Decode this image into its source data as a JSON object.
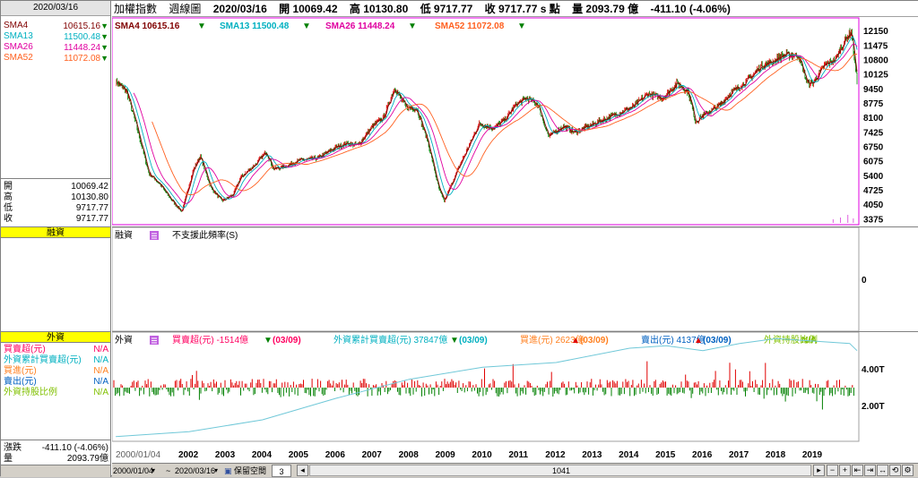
{
  "left_panel": {
    "date": "2020/03/16",
    "sma": [
      {
        "label": "SMA4",
        "value": "10615.16",
        "color": "#800000"
      },
      {
        "label": "SMA13",
        "value": "11500.48",
        "color": "#00b0c0"
      },
      {
        "label": "SMA26",
        "value": "11448.24",
        "color": "#e000a0"
      },
      {
        "label": "SMA52",
        "value": "11072.08",
        "color": "#ff6020"
      }
    ],
    "ohlc": [
      {
        "label": "開",
        "value": "10069.42"
      },
      {
        "label": "高",
        "value": "10130.80"
      },
      {
        "label": "低",
        "value": "9717.77"
      },
      {
        "label": "收",
        "value": "9717.77"
      }
    ],
    "margin_header": "融資",
    "foreign_header": "外資",
    "foreign_rows": [
      {
        "label": "買賣超(元)",
        "value": "N/A",
        "color": "#ff0060"
      },
      {
        "label": "外資累計買賣超(元)",
        "value": "N/A",
        "color": "#00b0c0"
      },
      {
        "label": "買進(元)",
        "value": "N/A",
        "color": "#ff8020"
      },
      {
        "label": "賣出(元)",
        "value": "N/A",
        "color": "#0060c0"
      },
      {
        "label": "外資持股比例",
        "value": "N/A",
        "color": "#80c000"
      }
    ],
    "change_label": "漲跌",
    "change_value": "-411.10 (-4.06%)",
    "volume_label": "量",
    "volume_value": "2093.79億"
  },
  "topbar": {
    "name": "加權指數",
    "period": "週線圖",
    "date": "2020/03/16",
    "open": "開 10069.42",
    "high": "高 10130.80",
    "low": "低 9717.77",
    "close": "收 9717.77 s 點",
    "volume": "量 2093.79 億",
    "change": "-411.10 (-4.06%)"
  },
  "price_legend": [
    {
      "text": "SMA4 10615.16",
      "color": "#800000"
    },
    {
      "text": "SMA13 11500.48",
      "color": "#00b0c0"
    },
    {
      "text": "SMA26 11448.24",
      "color": "#e000a0"
    },
    {
      "text": "SMA52 11072.08",
      "color": "#ff6020"
    }
  ],
  "margin_panel": {
    "title": "融資",
    "message": "不支援此頻率(S)",
    "axis_label": "0"
  },
  "foreign_panel": {
    "title": "外資",
    "legend": [
      {
        "text": "買賣超(元) -1514億",
        "date": "(03/09)",
        "arrow": "down",
        "color": "#ff0060"
      },
      {
        "text": "外資累計買賣超(元) 37847億",
        "date": "(03/09)",
        "arrow": "down",
        "color": "#00b0c0"
      },
      {
        "text": "買進(元) 2623億",
        "date": "(03/09)",
        "arrow": "up",
        "color": "#ff8020"
      },
      {
        "text": "賣出(元) 4137億",
        "date": "(03/09)",
        "arrow": "up",
        "color": "#0060c0"
      },
      {
        "text": "外資持股比例",
        "date": "N/A",
        "arrow": "",
        "color": "#80c000"
      }
    ],
    "axis_labels": [
      "4.00T",
      "2.00T"
    ]
  },
  "x_axis": [
    "2000/01/04",
    "2002",
    "2003",
    "2004",
    "2005",
    "2006",
    "2007",
    "2008",
    "2009",
    "2010",
    "2011",
    "2012",
    "2013",
    "2014",
    "2015",
    "2016",
    "2017",
    "2018",
    "2019"
  ],
  "bottombar": {
    "start_date": "2000/01/04",
    "end_date": "2020/03/16",
    "keep_label": "保留空間",
    "keep_value": "3",
    "count": "1041"
  },
  "chart_data": [
    {
      "type": "line",
      "title": "加權指數 週線圖",
      "y_ticks": [
        12150,
        11475,
        10800,
        10125,
        9450,
        8775,
        8100,
        7425,
        6750,
        6075,
        5400,
        4725,
        4050,
        3375
      ],
      "ylim": [
        3100,
        12700
      ],
      "x": [
        2000.0,
        2000.3,
        2000.6,
        2000.9,
        2001.2,
        2001.5,
        2001.8,
        2002.1,
        2002.3,
        2002.6,
        2002.9,
        2003.2,
        2003.4,
        2003.8,
        2004.1,
        2004.3,
        2004.6,
        2005.0,
        2005.5,
        2006.0,
        2006.3,
        2006.6,
        2007.0,
        2007.3,
        2007.6,
        2007.9,
        2008.2,
        2008.5,
        2008.8,
        2008.95,
        2009.3,
        2009.6,
        2009.9,
        2010.3,
        2010.6,
        2010.9,
        2011.2,
        2011.5,
        2011.8,
        2012.2,
        2012.5,
        2012.9,
        2013.3,
        2013.7,
        2014.1,
        2014.5,
        2014.9,
        2015.3,
        2015.6,
        2015.8,
        2016.0,
        2016.4,
        2016.8,
        2017.2,
        2017.6,
        2017.9,
        2018.2,
        2018.6,
        2018.85,
        2019.0,
        2019.3,
        2019.6,
        2019.9,
        2020.05,
        2020.2
      ],
      "series": [
        {
          "values": [
            9800,
            9300,
            7500,
            5500,
            5000,
            4300,
            3700,
            5600,
            6300,
            4800,
            4200,
            4500,
            5300,
            5900,
            6500,
            5700,
            5800,
            6100,
            6200,
            6700,
            6900,
            6800,
            7700,
            8100,
            9500,
            8600,
            8500,
            7000,
            4800,
            4200,
            5600,
            6700,
            7800,
            7600,
            8000,
            8700,
            9000,
            8700,
            7200,
            7700,
            7400,
            7700,
            8000,
            8300,
            8600,
            9200,
            9000,
            9700,
            9300,
            7900,
            8200,
            8600,
            9300,
            9800,
            10500,
            10700,
            11000,
            11000,
            9700,
            9700,
            10500,
            10800,
            11800,
            12100,
            9717
          ]
        }
      ]
    },
    {
      "type": "bar",
      "title": "外資",
      "axis_labels": [
        "4.00T",
        "2.00T"
      ],
      "series": [
        {
          "name": "外資累計買賣超(元)",
          "points": [
            [
              2000.0,
              0.2
            ],
            [
              2002.0,
              0.4
            ],
            [
              2004.0,
              0.9
            ],
            [
              2006.0,
              1.8
            ],
            [
              2008.0,
              2.6
            ],
            [
              2010.0,
              3.1
            ],
            [
              2012.0,
              3.3
            ],
            [
              2014.0,
              3.9
            ],
            [
              2015.0,
              4.0
            ],
            [
              2016.0,
              3.8
            ],
            [
              2017.0,
              4.1
            ],
            [
              2018.0,
              4.3
            ],
            [
              2019.0,
              4.2
            ],
            [
              2020.0,
              4.1
            ],
            [
              2020.2,
              3.8
            ]
          ]
        }
      ]
    }
  ]
}
